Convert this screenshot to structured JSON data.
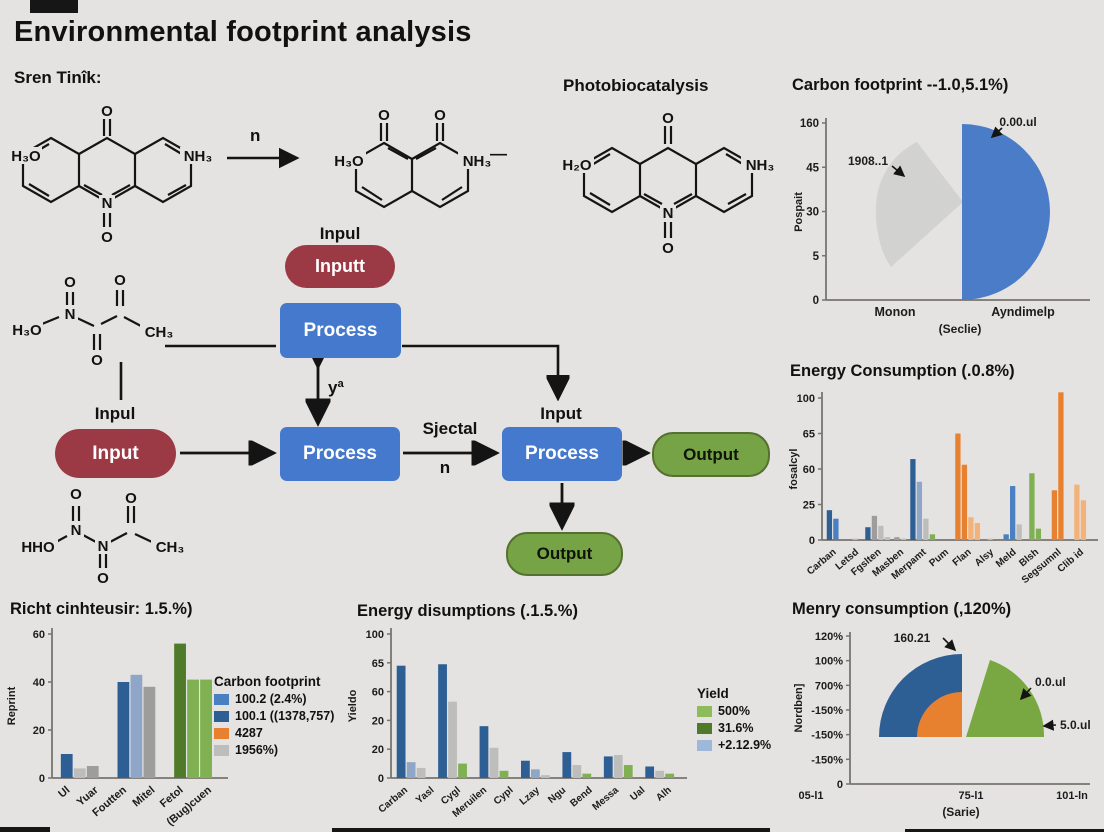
{
  "page": {
    "title": "Environmental footprint analysis",
    "subtitle": "Sren Tinîk:"
  },
  "scheme": {
    "photobiocatalysis_label": "Photobiocatalysis",
    "reaction_arrow_label": "n",
    "dash": "—",
    "molecules": {
      "mol1": {
        "top_o": "O",
        "left": "H₃O",
        "right": "NH₃",
        "bottom_n": "N",
        "bottom_o": "O"
      },
      "mol2": {
        "o1": "O",
        "o2": "O",
        "left": "H₃O",
        "right": "NH₃"
      },
      "mol3": {
        "top_o": "O",
        "left": "H₂O",
        "right": "NH₃",
        "bottom_n": "N",
        "bottom_o": "O"
      },
      "molA": {
        "o1": "O",
        "o2": "O",
        "o3": "O",
        "n": "N",
        "left": "H₃O",
        "right": "CH₃"
      },
      "molD": {
        "o1": "O",
        "o2": "O",
        "o3": "O",
        "n1": "N",
        "n2": "N",
        "left": "HHO",
        "right": "CH₃"
      }
    }
  },
  "flowchart": {
    "input1_caption": "Inpul",
    "input1_label": "Inputt",
    "process1_label": "Process",
    "feedback_label": "yª",
    "input2_caption": "Inpul",
    "input2_label": "Input",
    "process2_label": "Process",
    "edge_label_top": "Sjectal",
    "edge_label_bottom": "n",
    "input3_caption": "Input",
    "process3_label": "Process",
    "output1_label": "Output",
    "output2_label": "Output"
  },
  "palette": {
    "dark_blue": "#2e5f94",
    "mid_blue": "#4a7fc1",
    "slate_blue": "#8fa6c8",
    "pale_blue": "#9db8d9",
    "light_gray": "#bdbdbb",
    "gray": "#9d9d9b",
    "orange": "#e8812f",
    "light_orange": "#f2b279",
    "green": "#7fb052",
    "light_green": "#8fbc5a",
    "dark_green": "#4f7a2a",
    "pie_blue": "#4a7cc7",
    "pie_gray": "#d2d2d0",
    "pie_green": "#79a842",
    "flow_red": "#9b3a44",
    "flow_blue": "#4579cd",
    "flow_green": "#76a346"
  },
  "chart_data": [
    {
      "type": "pie",
      "title": "Carbon footprint --1.0,5.1%)",
      "ylabel": "Pospait",
      "xlabel": "(Seclie)",
      "yticks": [
        "160",
        "45",
        "30",
        "5",
        "0"
      ],
      "categories": [
        "Monon",
        "Ayndimelp"
      ],
      "slices": [
        {
          "name": "Monon",
          "color_key": "pie_gray",
          "annotation": "1908..1"
        },
        {
          "name": "Ayndimelp",
          "color_key": "pie_blue",
          "annotation": "0.00.ul"
        }
      ],
      "legend_position": "none"
    },
    {
      "type": "bar",
      "title": "Energy Consumption (.0.8%)",
      "ylabel": "fosalcyl",
      "yticks": [
        "100",
        "65",
        "60",
        "25",
        "0"
      ],
      "ylim": [
        0,
        110
      ],
      "categories": [
        "Carban",
        "Letsd",
        "Fgslten",
        "Masben",
        "Merpamt",
        "Pum",
        "Flan",
        "Alsy",
        "Meld",
        "Blsh",
        "Segsumnl",
        "Clib id"
      ],
      "groups": [
        [
          {
            "c": "dark_blue",
            "v": 21
          },
          {
            "c": "mid_blue",
            "v": 15
          }
        ],
        [
          {
            "c": "light_gray",
            "v": 1
          }
        ],
        [
          {
            "c": "dark_blue",
            "v": 9
          },
          {
            "c": "gray",
            "v": 17
          },
          {
            "c": "light_gray",
            "v": 10
          },
          {
            "c": "light_gray",
            "v": 2
          }
        ],
        [
          {
            "c": "gray",
            "v": 2
          },
          {
            "c": "light_gray",
            "v": 1
          }
        ],
        [
          {
            "c": "dark_blue",
            "v": 57
          },
          {
            "c": "slate_blue",
            "v": 41
          },
          {
            "c": "light_gray",
            "v": 15
          },
          {
            "c": "green",
            "v": 4
          }
        ],
        [],
        [
          {
            "c": "orange",
            "v": 75
          },
          {
            "c": "orange",
            "v": 53
          },
          {
            "c": "light_orange",
            "v": 16
          },
          {
            "c": "light_orange",
            "v": 12
          }
        ],
        [
          {
            "c": "light_gray",
            "v": 1
          }
        ],
        [
          {
            "c": "mid_blue",
            "v": 4
          },
          {
            "c": "mid_blue",
            "v": 38
          },
          {
            "c": "light_gray",
            "v": 11
          }
        ],
        [
          {
            "c": "green",
            "v": 47
          },
          {
            "c": "green",
            "v": 8
          }
        ],
        [
          {
            "c": "orange",
            "v": 35
          },
          {
            "c": "orange",
            "v": 104
          }
        ],
        [
          {
            "c": "light_orange",
            "v": 39
          },
          {
            "c": "light_orange",
            "v": 28
          }
        ]
      ]
    },
    {
      "type": "bar",
      "title": "Richt cinhteusir: 1.5.%)",
      "ylabel": "Reprint",
      "yticks": [
        "60",
        "40",
        "20",
        "0"
      ],
      "ylim": [
        0,
        60
      ],
      "categories": [
        "Ul",
        "Yuar",
        "Foutten",
        "Mitel",
        "Fetol",
        "(Bug)cuen"
      ],
      "groups": [
        [
          {
            "c": "dark_blue",
            "v": 10
          },
          {
            "c": "light_gray",
            "v": 4
          },
          {
            "c": "gray",
            "v": 5
          }
        ],
        [
          {
            "c": "dark_blue",
            "v": 40
          },
          {
            "c": "slate_blue",
            "v": 43
          },
          {
            "c": "gray",
            "v": 38
          }
        ],
        [
          {
            "c": "dark_green",
            "v": 56
          },
          {
            "c": "green",
            "v": 41
          },
          {
            "c": "green",
            "v": 41
          }
        ]
      ],
      "legend": {
        "title": "Carbon footprint",
        "items": [
          {
            "c": "mid_blue",
            "label": "100.2 (2.4%)"
          },
          {
            "c": "dark_blue",
            "label": "100.1 ((1378,757)"
          },
          {
            "c": "orange",
            "label": "4287"
          },
          {
            "c": "light_gray",
            "label": "1956%)"
          }
        ]
      }
    },
    {
      "type": "bar",
      "title": "Energy disumptions (.1.5.%)",
      "ylabel": "Yieldo",
      "yticks": [
        "100",
        "65",
        "60",
        "20",
        "20",
        "0"
      ],
      "ylim": [
        0,
        100
      ],
      "categories": [
        "Carban",
        "Yasl",
        "Cygl",
        "Meruilen",
        "Cypl",
        "Lzay",
        "Ngu",
        "Bend",
        "Messa",
        "Ual",
        "Alh"
      ],
      "groups": [
        [
          {
            "c": "dark_blue",
            "v": 78
          },
          {
            "c": "slate_blue",
            "v": 11
          },
          {
            "c": "light_gray",
            "v": 7
          }
        ],
        [
          {
            "c": "dark_blue",
            "v": 79
          },
          {
            "c": "light_gray",
            "v": 53
          },
          {
            "c": "green",
            "v": 10
          }
        ],
        [
          {
            "c": "dark_blue",
            "v": 36
          },
          {
            "c": "light_gray",
            "v": 21
          },
          {
            "c": "green",
            "v": 5
          }
        ],
        [
          {
            "c": "dark_blue",
            "v": 12
          },
          {
            "c": "slate_blue",
            "v": 6
          },
          {
            "c": "light_gray",
            "v": 2
          }
        ],
        [
          {
            "c": "dark_blue",
            "v": 18
          },
          {
            "c": "light_gray",
            "v": 9
          },
          {
            "c": "green",
            "v": 3
          }
        ],
        [
          {
            "c": "dark_blue",
            "v": 15
          },
          {
            "c": "light_gray",
            "v": 16
          },
          {
            "c": "green",
            "v": 9
          }
        ],
        [
          {
            "c": "dark_blue",
            "v": 8
          },
          {
            "c": "light_gray",
            "v": 5
          },
          {
            "c": "green",
            "v": 3
          }
        ]
      ],
      "legend": {
        "title": "Yield",
        "items": [
          {
            "c": "light_green",
            "label": "500%"
          },
          {
            "c": "dark_green",
            "label": "31.6%"
          },
          {
            "c": "pale_blue",
            "label": "+2.12.9%"
          }
        ]
      }
    },
    {
      "type": "pie",
      "title": "Menry consumption  (,120%)",
      "ylabel": "Nordben]",
      "xlabel": "(Sarie)",
      "yticks": [
        "120%",
        "100%",
        "700%",
        "-150%",
        "-150%",
        "-150%",
        "0"
      ],
      "xticks": [
        "05-l1",
        "75-l1",
        "101-ln"
      ],
      "slices": [
        {
          "color_key": "pie_blue",
          "annotation": "160.21"
        },
        {
          "color_key": "orange",
          "annotation": ""
        },
        {
          "color_key": "pie_green",
          "annotation": "0.0.ul"
        }
      ],
      "annotations": [
        "160.21",
        "0.0.ul",
        "5.0.ul"
      ]
    }
  ]
}
